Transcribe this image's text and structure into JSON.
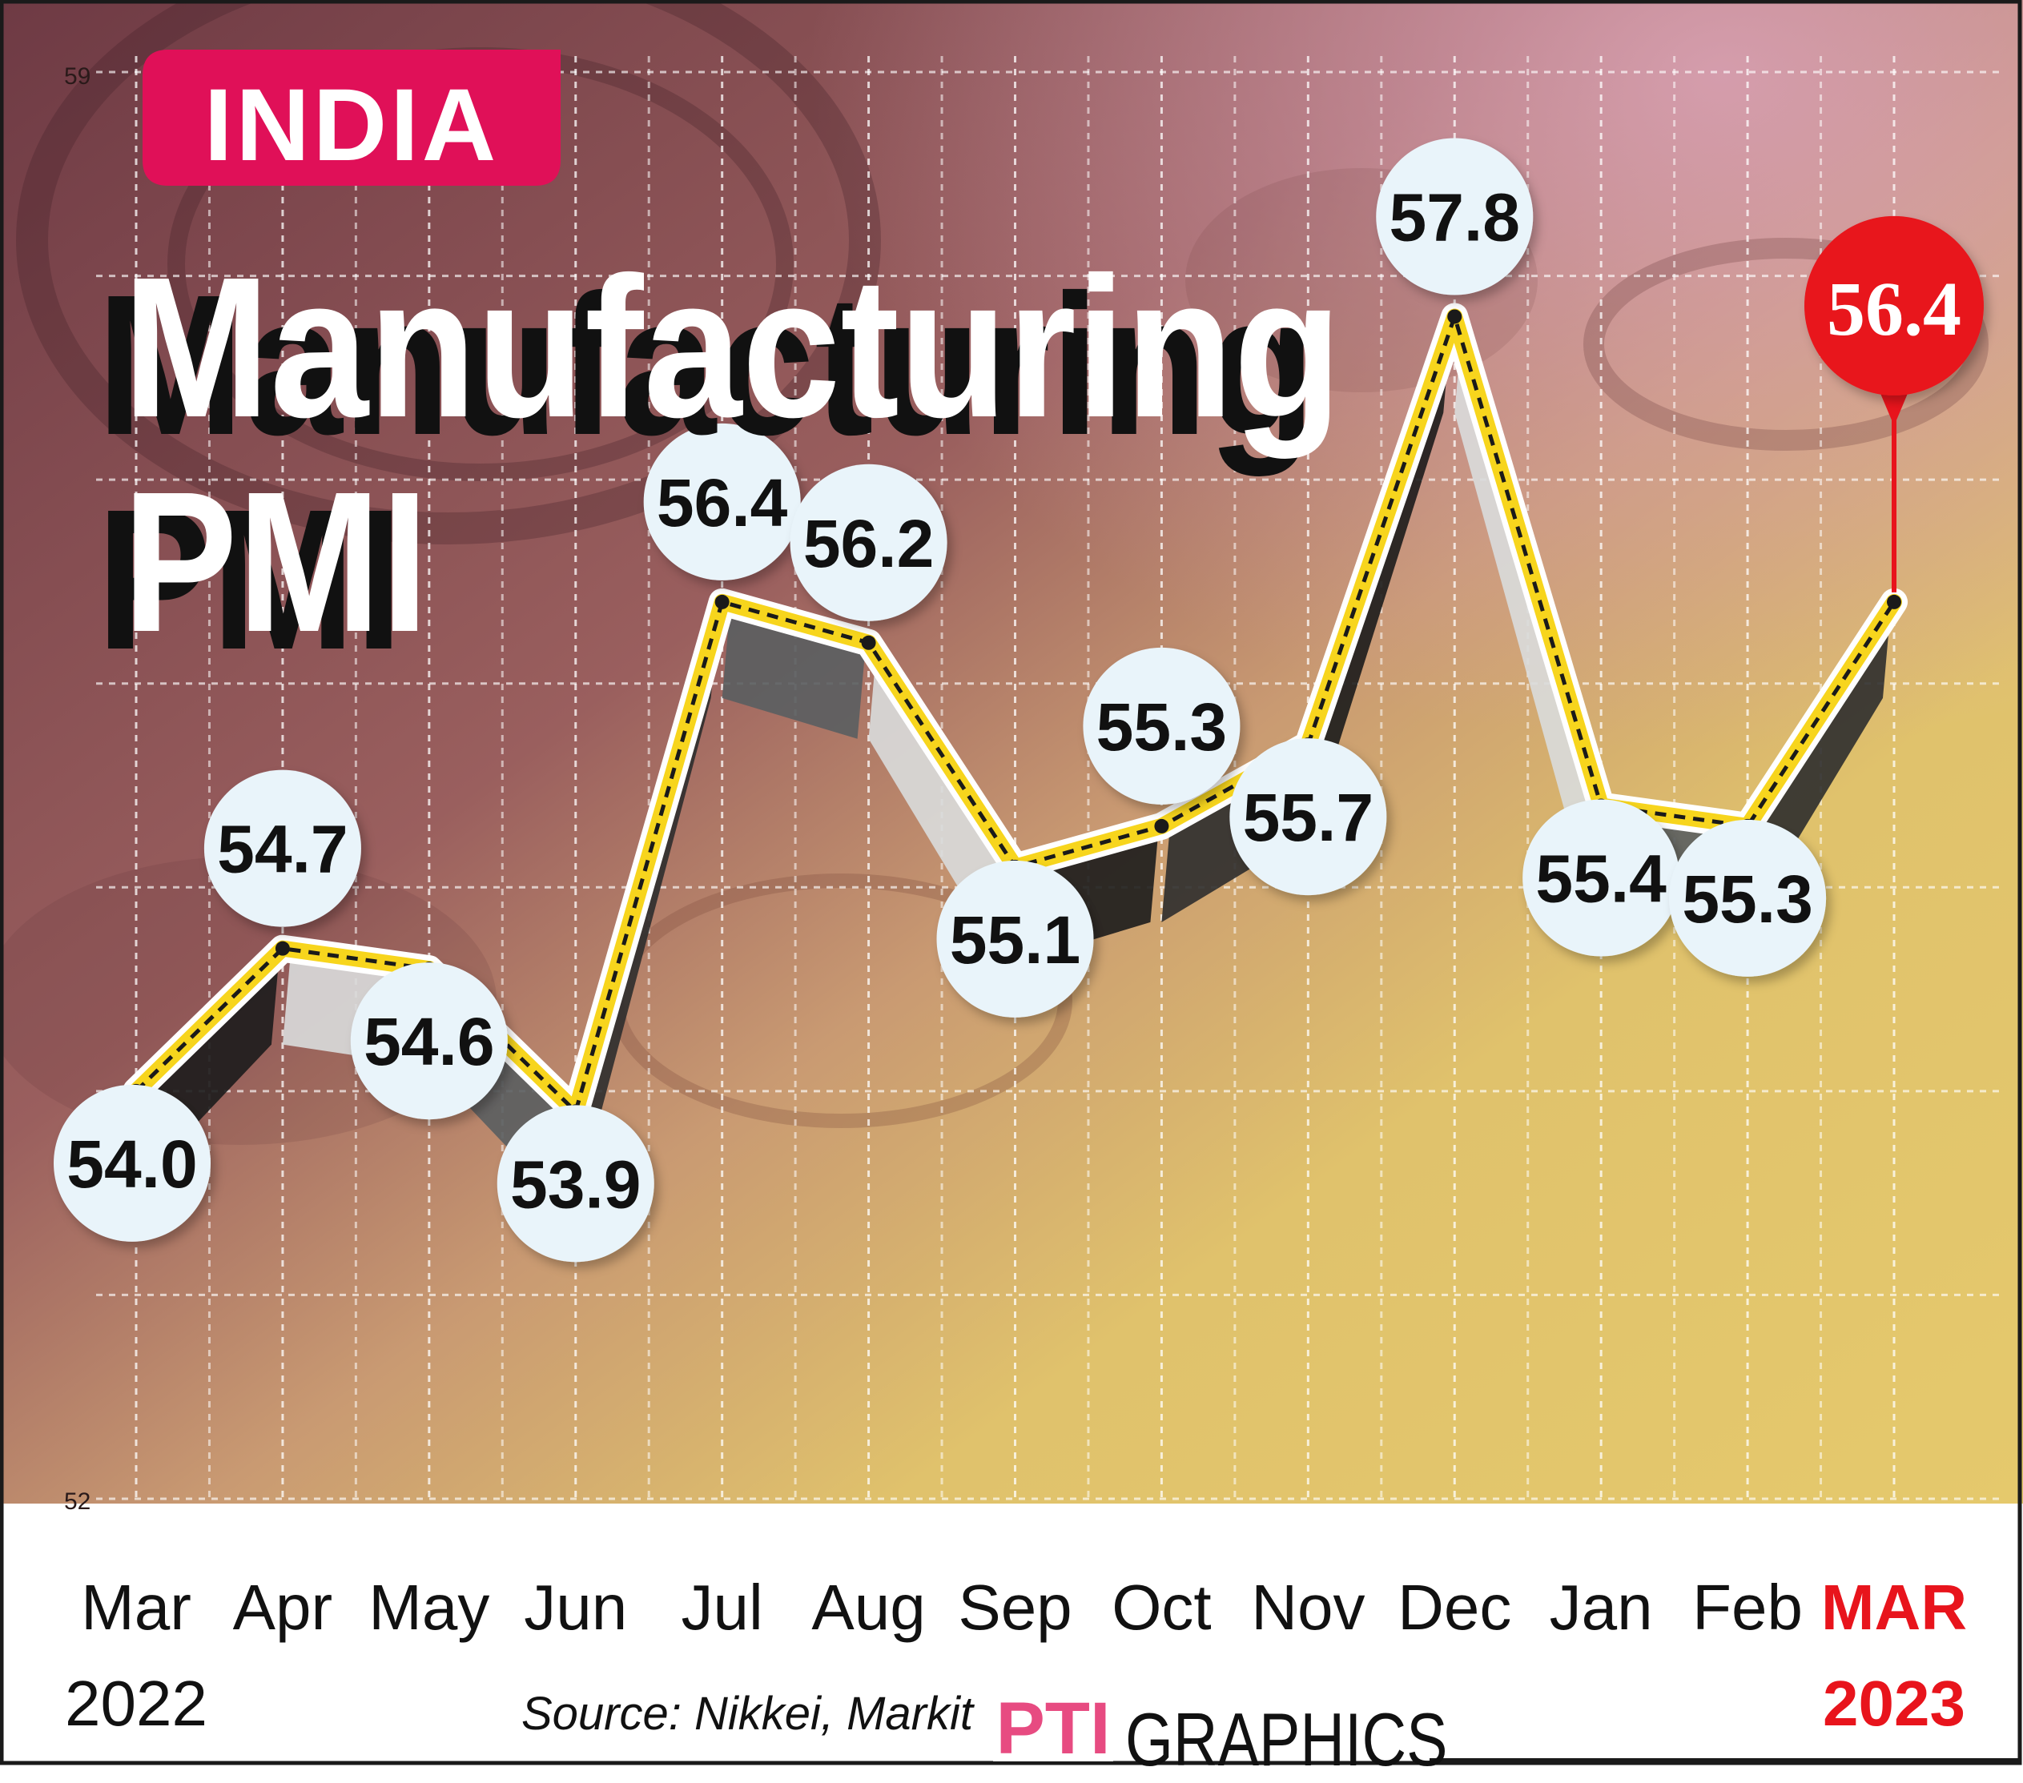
{
  "badge": "INDIA",
  "title_line1": "Manufacturing",
  "title_line2": "PMI",
  "source": "Source: Nikkei, Markit",
  "logo_text": "PTI",
  "graphics_label": "GRAPHICS",
  "colors": {
    "badge": "#e01058",
    "line": "#f7d51d",
    "highlight": "#e8141c",
    "label_bubble": "#e9f4fa",
    "bg_top": "#7a3f47",
    "bg_bottom": "#e2c66a"
  },
  "chart_data": {
    "type": "line",
    "title": "Manufacturing PMI",
    "ylim": [
      52,
      59
    ],
    "y_ticks": [
      "59",
      "52"
    ],
    "grid": true,
    "categories": [
      "Mar",
      "Apr",
      "May",
      "Jun",
      "Jul",
      "Aug",
      "Sep",
      "Oct",
      "Nov",
      "Dec",
      "Jan",
      "Feb",
      "MAR"
    ],
    "category_years": {
      "0": "2022",
      "12": "2023"
    },
    "values": [
      54.0,
      54.7,
      54.6,
      53.9,
      56.4,
      56.2,
      55.1,
      55.3,
      55.7,
      57.8,
      55.4,
      55.3,
      56.4
    ],
    "data_labels": [
      "54.0",
      "54.7",
      "54.6",
      "53.9",
      "56.4",
      "56.2",
      "55.1",
      "55.3",
      "55.7",
      "57.8",
      "55.4",
      "55.3",
      "56.4"
    ],
    "highlight_index": 12
  }
}
